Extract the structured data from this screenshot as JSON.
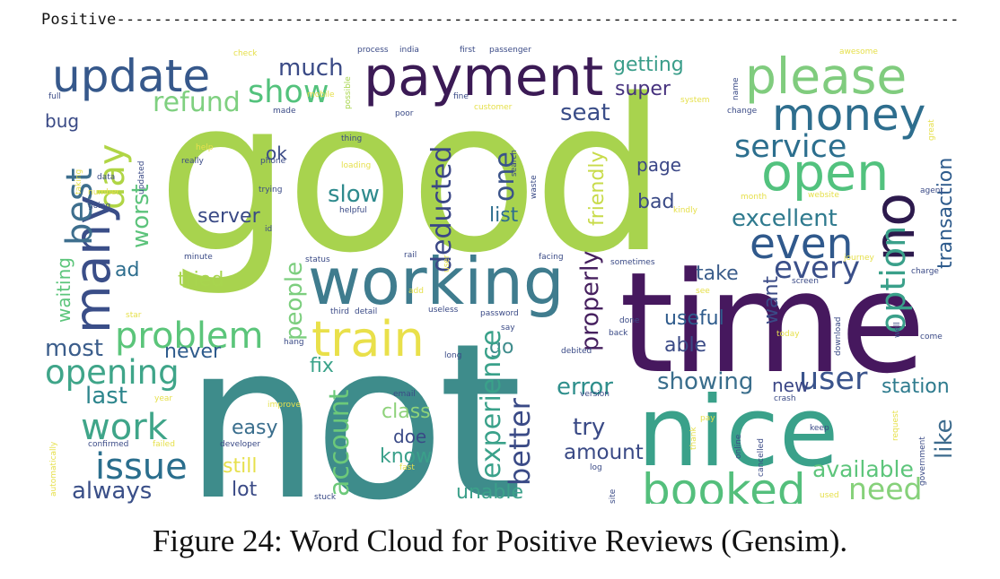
{
  "header": {
    "label": "Positive",
    "rule": "------------------------------------------------------------------------------------------"
  },
  "figure": {
    "caption": "Figure 24: Word Cloud for Positive Reviews (Gensim).",
    "palette": "viridis",
    "words": [
      {
        "id": "good",
        "text": "good",
        "color": "#a8d34e"
      },
      {
        "id": "not",
        "text": "not",
        "color": "#3e8c8b"
      },
      {
        "id": "time",
        "text": "time",
        "color": "#46185e"
      },
      {
        "id": "nice",
        "text": "nice",
        "color": "#3aa18a"
      },
      {
        "id": "working",
        "text": "working",
        "color": "#3f7c8e"
      },
      {
        "id": "payment",
        "text": "payment",
        "color": "#3b1a55"
      },
      {
        "id": "update",
        "text": "update",
        "color": "#36588b"
      },
      {
        "id": "please",
        "text": "please",
        "color": "#80cc7e"
      },
      {
        "id": "money",
        "text": "money",
        "color": "#2e6e8e"
      },
      {
        "id": "open",
        "text": "open",
        "color": "#52c27e"
      },
      {
        "id": "booked",
        "text": "booked",
        "color": "#54bf7c"
      },
      {
        "id": "train",
        "text": "train",
        "color": "#e9e04a"
      },
      {
        "id": "problem",
        "text": "problem",
        "color": "#5bc57a"
      },
      {
        "id": "many",
        "text": "many",
        "color": "#3a4e88"
      },
      {
        "id": "even",
        "text": "even",
        "color": "#30598c"
      },
      {
        "id": "service",
        "text": "service",
        "color": "#2c6f8e"
      },
      {
        "id": "issue",
        "text": "issue",
        "color": "#2a6e8d"
      },
      {
        "id": "work",
        "text": "work",
        "color": "#3fa589"
      },
      {
        "id": "opening",
        "text": "opening",
        "color": "#3fa589"
      },
      {
        "id": "user",
        "text": "user",
        "color": "#3a548c"
      },
      {
        "id": "no",
        "text": "no",
        "color": "#2d1a4d"
      },
      {
        "id": "day",
        "text": "day",
        "color": "#b0d545"
      },
      {
        "id": "best",
        "text": "best",
        "color": "#3e6f8e"
      },
      {
        "id": "show",
        "text": "show",
        "color": "#53c27c"
      },
      {
        "id": "much",
        "text": "much",
        "color": "#3a4a86"
      },
      {
        "id": "refund",
        "text": "refund",
        "color": "#7fd080"
      },
      {
        "id": "worst",
        "text": "worst",
        "color": "#5cc37b"
      },
      {
        "id": "every",
        "text": "every",
        "color": "#3a4f89"
      },
      {
        "id": "option",
        "text": "option",
        "color": "#3aa08a"
      },
      {
        "id": "excellent",
        "text": "excellent",
        "color": "#2f7a8e"
      },
      {
        "id": "need",
        "text": "need",
        "color": "#86d17a"
      },
      {
        "id": "like",
        "text": "like",
        "color": "#3d6b8d"
      },
      {
        "id": "available",
        "text": "available",
        "color": "#5dc57b"
      },
      {
        "id": "always",
        "text": "always",
        "color": "#3a4f88"
      },
      {
        "id": "showing",
        "text": "showing",
        "color": "#3a6e8c"
      },
      {
        "id": "experience",
        "text": "experience",
        "color": "#3aa18a"
      },
      {
        "id": "account",
        "text": "account",
        "color": "#6cc97a"
      },
      {
        "id": "deducted",
        "text": "deducted",
        "color": "#3a4686"
      },
      {
        "id": "one",
        "text": "one",
        "color": "#3a5289"
      },
      {
        "id": "slow",
        "text": "slow",
        "color": "#2e8a8d"
      },
      {
        "id": "server",
        "text": "server",
        "color": "#3a4a86"
      },
      {
        "id": "seat",
        "text": "seat",
        "color": "#3a4d88"
      },
      {
        "id": "super",
        "text": "super",
        "color": "#46327e"
      },
      {
        "id": "getting",
        "text": "getting",
        "color": "#3a9d8a"
      },
      {
        "id": "friendly",
        "text": "friendly",
        "color": "#c8db4a"
      },
      {
        "id": "properly",
        "text": "properly",
        "color": "#46205f"
      },
      {
        "id": "people",
        "text": "people",
        "color": "#7cce7e"
      },
      {
        "id": "most",
        "text": "most",
        "color": "#3b5d8b"
      },
      {
        "id": "last",
        "text": "last",
        "color": "#2e868d"
      },
      {
        "id": "fix",
        "text": "fix",
        "color": "#3ba38a"
      },
      {
        "id": "never",
        "text": "never",
        "color": "#2e5b8c"
      },
      {
        "id": "go",
        "text": "go",
        "color": "#3f8c8c"
      },
      {
        "id": "better",
        "text": "better",
        "color": "#3a4a86"
      },
      {
        "id": "error",
        "text": "error",
        "color": "#2f8f8c"
      },
      {
        "id": "try",
        "text": "try",
        "color": "#3a4a86"
      },
      {
        "id": "still",
        "text": "still",
        "color": "#e6e04c"
      },
      {
        "id": "lot",
        "text": "lot",
        "color": "#3a4a86"
      },
      {
        "id": "easy",
        "text": "easy",
        "color": "#3a6e8d"
      },
      {
        "id": "unable",
        "text": "unable",
        "color": "#3ca08a"
      },
      {
        "id": "amount",
        "text": "amount",
        "color": "#3a4a86"
      },
      {
        "id": "station",
        "text": "station",
        "color": "#2e7b8e"
      },
      {
        "id": "new",
        "text": "new",
        "color": "#3a4686"
      },
      {
        "id": "useful",
        "text": "useful",
        "color": "#2e5b8c"
      },
      {
        "id": "able",
        "text": "able",
        "color": "#3a4a86"
      },
      {
        "id": "take",
        "text": "take",
        "color": "#3b5d8b"
      },
      {
        "id": "want",
        "text": "want",
        "color": "#3a4a86"
      },
      {
        "id": "transaction",
        "text": "transaction",
        "color": "#2e5b8c"
      },
      {
        "id": "bad",
        "text": "bad",
        "color": "#3a4a86"
      },
      {
        "id": "page",
        "text": "page",
        "color": "#3a4686"
      },
      {
        "id": "list",
        "text": "list",
        "color": "#2e6e8e"
      },
      {
        "id": "ok",
        "text": "ok",
        "color": "#3a4a86"
      },
      {
        "id": "bug",
        "text": "bug",
        "color": "#3a4a86"
      },
      {
        "id": "class",
        "text": "class",
        "color": "#8ed27a"
      },
      {
        "id": "doe",
        "text": "doe",
        "color": "#3a4a86"
      },
      {
        "id": "know",
        "text": "know",
        "color": "#3aa08a"
      },
      {
        "id": "ad",
        "text": "ad",
        "color": "#2e6e8e"
      },
      {
        "id": "tried",
        "text": "tried",
        "color": "#a8d54e"
      },
      {
        "id": "waiting",
        "text": "waiting",
        "color": "#5cc57b"
      },
      {
        "id": "india",
        "text": "india",
        "color": "#3a4a86"
      },
      {
        "id": "first",
        "text": "first",
        "color": "#3a4a86"
      },
      {
        "id": "passenger",
        "text": "passenger",
        "color": "#3a4a86"
      },
      {
        "id": "process",
        "text": "process",
        "color": "#3a4a86"
      },
      {
        "id": "check",
        "text": "check",
        "color": "#e6e04c"
      },
      {
        "id": "awesome",
        "text": "awesome",
        "color": "#e6e04c"
      },
      {
        "id": "full",
        "text": "full",
        "color": "#3a4a86"
      },
      {
        "id": "possible",
        "text": "possible",
        "color": "#a8d54e"
      },
      {
        "id": "mobile",
        "text": "mobile",
        "color": "#e6e04c"
      },
      {
        "id": "made",
        "text": "made",
        "color": "#3a4a86"
      },
      {
        "id": "fine",
        "text": "fine",
        "color": "#3a4a86"
      },
      {
        "id": "customer",
        "text": "customer",
        "color": "#e6e04c"
      },
      {
        "id": "poor",
        "text": "poor",
        "color": "#3a4a86"
      },
      {
        "id": "name",
        "text": "name",
        "color": "#3a4a86"
      },
      {
        "id": "system",
        "text": "system",
        "color": "#e6e04c"
      },
      {
        "id": "change",
        "text": "change",
        "color": "#3a4a86"
      },
      {
        "id": "great",
        "text": "great",
        "color": "#e6e04c"
      },
      {
        "id": "thing",
        "text": "thing",
        "color": "#3a4a86"
      },
      {
        "id": "help",
        "text": "help",
        "color": "#e6e04c"
      },
      {
        "id": "really",
        "text": "really",
        "color": "#3a4a86"
      },
      {
        "id": "phone",
        "text": "phone",
        "color": "#3a4a86"
      },
      {
        "id": "loading",
        "text": "loading",
        "color": "#e6e04c"
      },
      {
        "id": "search",
        "text": "search",
        "color": "#3a4a86"
      },
      {
        "id": "waste",
        "text": "waste",
        "color": "#3a4a86"
      },
      {
        "id": "taking",
        "text": "taking",
        "color": "#e6e04c"
      },
      {
        "id": "data",
        "text": "data",
        "color": "#3a4a86"
      },
      {
        "id": "updated",
        "text": "updated",
        "color": "#3a4a86"
      },
      {
        "id": "number",
        "text": "number",
        "color": "#e6e04c"
      },
      {
        "id": "going",
        "text": "going",
        "color": "#3a4a86"
      },
      {
        "id": "trying",
        "text": "trying",
        "color": "#3a4a86"
      },
      {
        "id": "helpful",
        "text": "helpful",
        "color": "#3a4a86"
      },
      {
        "id": "month",
        "text": "month",
        "color": "#e6e04c"
      },
      {
        "id": "website",
        "text": "website",
        "color": "#e6e04c"
      },
      {
        "id": "agent",
        "text": "agent",
        "color": "#3a4a86"
      },
      {
        "id": "kindly",
        "text": "kindly",
        "color": "#e6e04c"
      },
      {
        "id": "id",
        "text": "id",
        "color": "#3a4a86"
      },
      {
        "id": "minute",
        "text": "minute",
        "color": "#3a4a86"
      },
      {
        "id": "rail",
        "text": "rail",
        "color": "#3a4a86"
      },
      {
        "id": "facing",
        "text": "facing",
        "color": "#3a4a86"
      },
      {
        "id": "sometimes",
        "text": "sometimes",
        "color": "#3a4a86"
      },
      {
        "id": "journey",
        "text": "journey",
        "color": "#e6e04c"
      },
      {
        "id": "charge",
        "text": "charge",
        "color": "#3a4a86"
      },
      {
        "id": "status",
        "text": "status",
        "color": "#3a4a86"
      },
      {
        "id": "add",
        "text": "add",
        "color": "#e6e04c"
      },
      {
        "id": "user2",
        "text": "user",
        "color": "#e6e04c"
      },
      {
        "id": "screen",
        "text": "screen",
        "color": "#3a4a86"
      },
      {
        "id": "see",
        "text": "see",
        "color": "#e6e04c"
      },
      {
        "id": "star",
        "text": "star",
        "color": "#e6e04c"
      },
      {
        "id": "third",
        "text": "third",
        "color": "#3a4a86"
      },
      {
        "id": "detail",
        "text": "detail",
        "color": "#3a4a86"
      },
      {
        "id": "useless",
        "text": "useless",
        "color": "#3a4a86"
      },
      {
        "id": "password",
        "text": "password",
        "color": "#3a4a86"
      },
      {
        "id": "say",
        "text": "say",
        "color": "#3a4a86"
      },
      {
        "id": "hang",
        "text": "hang",
        "color": "#3a4a86"
      },
      {
        "id": "done",
        "text": "done",
        "color": "#3a4a86"
      },
      {
        "id": "back",
        "text": "back",
        "color": "#3a4a86"
      },
      {
        "id": "download",
        "text": "download",
        "color": "#3a4a86"
      },
      {
        "id": "today",
        "text": "today",
        "color": "#e6e04c"
      },
      {
        "id": "well",
        "text": "well",
        "color": "#3a4a86"
      },
      {
        "id": "come",
        "text": "come",
        "color": "#3a4a86"
      },
      {
        "id": "debited",
        "text": "debited",
        "color": "#3a4a86"
      },
      {
        "id": "long",
        "text": "long",
        "color": "#3a4a86"
      },
      {
        "id": "email",
        "text": "email",
        "color": "#3a4a86"
      },
      {
        "id": "version",
        "text": "version",
        "color": "#3a4a86"
      },
      {
        "id": "crash",
        "text": "crash",
        "color": "#3a4a86"
      },
      {
        "id": "improve",
        "text": "improve",
        "color": "#e6e04c"
      },
      {
        "id": "year",
        "text": "year",
        "color": "#e6e04c"
      },
      {
        "id": "pay",
        "text": "pay",
        "color": "#e6e04c"
      },
      {
        "id": "thank",
        "text": "thank",
        "color": "#e6e04c"
      },
      {
        "id": "keep",
        "text": "keep",
        "color": "#3a4a86"
      },
      {
        "id": "online",
        "text": "online",
        "color": "#3a4a86"
      },
      {
        "id": "cancelled",
        "text": "cancelled",
        "color": "#3a4a86"
      },
      {
        "id": "request",
        "text": "request",
        "color": "#e6e04c"
      },
      {
        "id": "automatically",
        "text": "automatically",
        "color": "#e6e04c"
      },
      {
        "id": "confirmed",
        "text": "confirmed",
        "color": "#3a4a86"
      },
      {
        "id": "failed",
        "text": "failed",
        "color": "#e6e04c"
      },
      {
        "id": "developer",
        "text": "developer",
        "color": "#3a4a86"
      },
      {
        "id": "fast",
        "text": "fast",
        "color": "#e6e04c"
      },
      {
        "id": "log",
        "text": "log",
        "color": "#3a4a86"
      },
      {
        "id": "site",
        "text": "site",
        "color": "#3a4a86"
      },
      {
        "id": "used",
        "text": "used",
        "color": "#e6e04c"
      },
      {
        "id": "government",
        "text": "government",
        "color": "#3a4a86"
      },
      {
        "id": "stuck",
        "text": "stuck",
        "color": "#3a4a86"
      }
    ]
  }
}
